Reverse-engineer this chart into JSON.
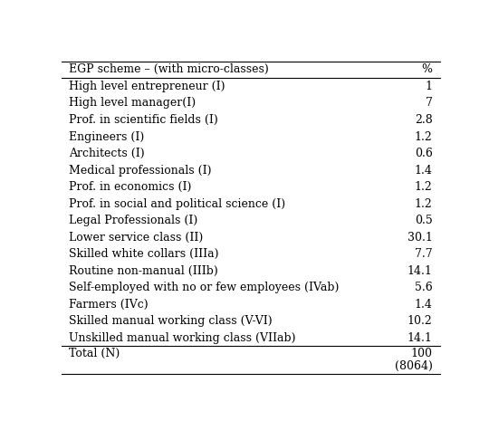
{
  "header": [
    "EGP scheme – (with micro-classes)",
    "%"
  ],
  "rows": [
    [
      "High level entrepreneur (I)",
      "1"
    ],
    [
      "High level manager(I)",
      "7"
    ],
    [
      "Prof. in scientific fields (I)",
      "2.8"
    ],
    [
      "Engineers (I)",
      "1.2"
    ],
    [
      "Architects (I)",
      "0.6"
    ],
    [
      "Medical professionals (I)",
      "1.4"
    ],
    [
      "Prof. in economics (I)",
      "1.2"
    ],
    [
      "Prof. in social and political science (I)",
      "1.2"
    ],
    [
      "Legal Professionals (I)",
      "0.5"
    ],
    [
      "Lower service class (II)",
      "30.1"
    ],
    [
      "Skilled white collars (IIIa)",
      "7.7"
    ],
    [
      "Routine non-manual (IIIb)",
      "14.1"
    ],
    [
      "Self-employed with no or few employees (IVab)",
      "5.6"
    ],
    [
      "Farmers (IVc)",
      "1.4"
    ],
    [
      "Skilled manual working class (V-VI)",
      "10.2"
    ],
    [
      "Unskilled manual working class (VIIab)",
      "14.1"
    ]
  ],
  "total_row": [
    "Total (N)",
    "100"
  ],
  "total_sub": "(8064)",
  "font_size": 9,
  "table_bg": "#ffffff"
}
